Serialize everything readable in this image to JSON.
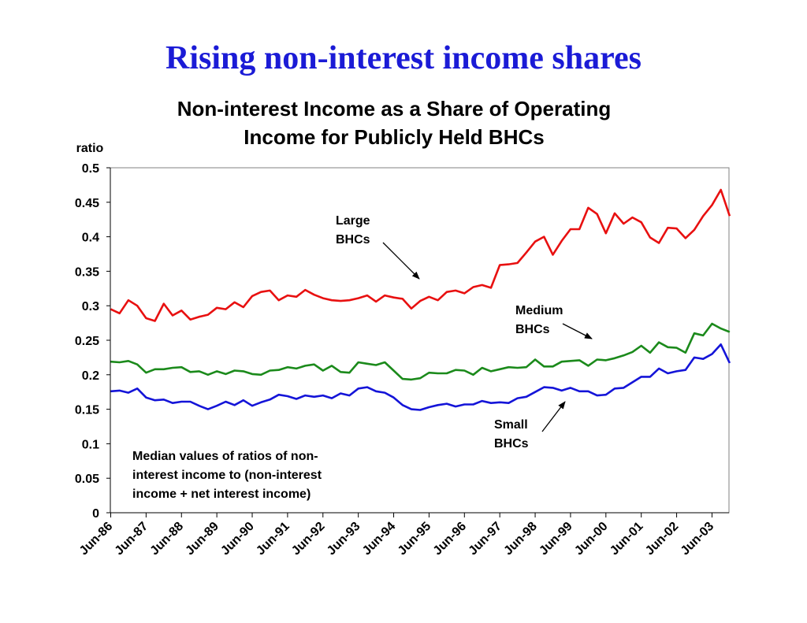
{
  "slide": {
    "title": "Rising non-interest income shares"
  },
  "chart_data": {
    "type": "line",
    "title_lines": [
      "Non-interest Income as a Share of Operating",
      "Income for Publicly Held BHCs"
    ],
    "ylabel": "ratio",
    "ylim": [
      0,
      0.5
    ],
    "y_ticks": [
      "0",
      "0.05",
      "0.1",
      "0.15",
      "0.2",
      "0.25",
      "0.3",
      "0.35",
      "0.4",
      "0.45",
      "0.5"
    ],
    "x_ticks": [
      "Jun-86",
      "Jun-87",
      "Jun-88",
      "Jun-89",
      "Jun-90",
      "Jun-91",
      "Jun-92",
      "Jun-93",
      "Jun-94",
      "Jun-95",
      "Jun-96",
      "Jun-97",
      "Jun-98",
      "Jun-99",
      "Jun-00",
      "Jun-01",
      "Jun-02",
      "Jun-03"
    ],
    "x_start": "Jun-86",
    "x_step": "quarter",
    "grid": false,
    "series": [
      {
        "name": "Large BHCs",
        "label_lines": [
          "Large",
          "BHCs"
        ],
        "color": "#e81010",
        "values": [
          0.295,
          0.289,
          0.308,
          0.3,
          0.282,
          0.278,
          0.303,
          0.286,
          0.293,
          0.28,
          0.284,
          0.287,
          0.297,
          0.295,
          0.305,
          0.298,
          0.314,
          0.32,
          0.322,
          0.308,
          0.315,
          0.313,
          0.323,
          0.316,
          0.311,
          0.308,
          0.307,
          0.308,
          0.311,
          0.315,
          0.306,
          0.315,
          0.312,
          0.31,
          0.296,
          0.307,
          0.313,
          0.308,
          0.32,
          0.322,
          0.318,
          0.327,
          0.33,
          0.326,
          0.359,
          0.36,
          0.362,
          0.377,
          0.393,
          0.4,
          0.374,
          0.394,
          0.411,
          0.411,
          0.442,
          0.433,
          0.405,
          0.434,
          0.419,
          0.428,
          0.421,
          0.399,
          0.391,
          0.413,
          0.412,
          0.398,
          0.41,
          0.43,
          0.446,
          0.468,
          0.43
        ]
      },
      {
        "name": "Medium BHCs",
        "label_lines": [
          "Medium",
          "BHCs"
        ],
        "color": "#1b8a1b",
        "values": [
          0.219,
          0.218,
          0.22,
          0.215,
          0.203,
          0.208,
          0.208,
          0.21,
          0.211,
          0.204,
          0.205,
          0.2,
          0.205,
          0.201,
          0.206,
          0.205,
          0.201,
          0.2,
          0.206,
          0.207,
          0.211,
          0.209,
          0.213,
          0.215,
          0.206,
          0.213,
          0.204,
          0.203,
          0.218,
          0.216,
          0.214,
          0.218,
          0.206,
          0.194,
          0.193,
          0.195,
          0.203,
          0.202,
          0.202,
          0.207,
          0.206,
          0.2,
          0.21,
          0.205,
          0.208,
          0.211,
          0.21,
          0.211,
          0.222,
          0.212,
          0.212,
          0.219,
          0.22,
          0.221,
          0.213,
          0.222,
          0.221,
          0.224,
          0.228,
          0.233,
          0.242,
          0.232,
          0.247,
          0.24,
          0.239,
          0.232,
          0.26,
          0.257,
          0.274,
          0.267,
          0.262
        ]
      },
      {
        "name": "Small BHCs",
        "label_lines": [
          "Small",
          "BHCs"
        ],
        "color": "#1414d8",
        "values": [
          0.176,
          0.177,
          0.174,
          0.18,
          0.167,
          0.163,
          0.164,
          0.159,
          0.161,
          0.161,
          0.155,
          0.15,
          0.155,
          0.161,
          0.156,
          0.163,
          0.155,
          0.16,
          0.164,
          0.171,
          0.169,
          0.165,
          0.17,
          0.168,
          0.17,
          0.166,
          0.173,
          0.17,
          0.18,
          0.182,
          0.176,
          0.174,
          0.167,
          0.156,
          0.15,
          0.149,
          0.153,
          0.156,
          0.158,
          0.154,
          0.157,
          0.157,
          0.162,
          0.159,
          0.16,
          0.159,
          0.166,
          0.168,
          0.175,
          0.182,
          0.181,
          0.177,
          0.181,
          0.176,
          0.176,
          0.17,
          0.171,
          0.18,
          0.181,
          0.189,
          0.197,
          0.197,
          0.209,
          0.202,
          0.205,
          0.207,
          0.225,
          0.223,
          0.23,
          0.244,
          0.217
        ]
      }
    ],
    "annotation_lines": [
      "Median values of ratios of non-",
      "interest income to (non-interest",
      "income + net interest income)"
    ]
  }
}
